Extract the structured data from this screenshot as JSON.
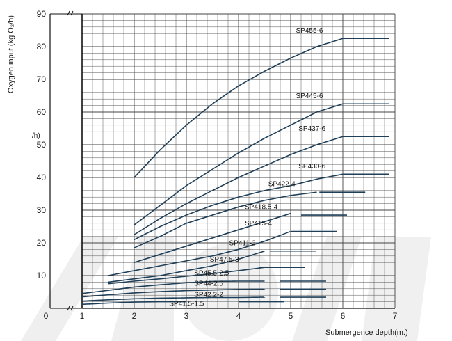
{
  "chart_data": {
    "type": "line",
    "ylabel": "Oxygen input (kg O₂/h)",
    "ylabel_fragment": "/h)",
    "xlabel": "Submergence depth(m.)",
    "x_ticks": [
      "0",
      "1",
      "2",
      "3",
      "4",
      "5",
      "6",
      "7"
    ],
    "y_ticks": [
      "10",
      "20",
      "30",
      "40",
      "50",
      "60",
      "70",
      "80",
      "90"
    ],
    "xlim": [
      1,
      7
    ],
    "ylim": [
      0,
      90
    ],
    "axis_break": true,
    "grid": true,
    "colors": {
      "line": "#1f3f58",
      "grid": "#444444",
      "text": "#1a1a1a",
      "watermark": "#ececec"
    },
    "series": [
      {
        "name": "SP455-6",
        "x": [
          2,
          2.5,
          3,
          3.5,
          4,
          4.5,
          5,
          5.5,
          6
        ],
        "y": [
          40,
          48.5,
          56,
          62.5,
          68,
          72.5,
          76.5,
          80,
          82.5
        ]
      },
      {
        "name": "SP445-6",
        "x": [
          2,
          2.5,
          3,
          3.5,
          4,
          4.5,
          5,
          5.5,
          6
        ],
        "y": [
          25.5,
          31.5,
          37.5,
          42.5,
          47.5,
          52,
          56,
          60,
          62.5
        ]
      },
      {
        "name": "SP437-6",
        "x": [
          2,
          2.5,
          3,
          3.5,
          4,
          4.5,
          5,
          5.5,
          6
        ],
        "y": [
          22.5,
          27.5,
          32,
          36,
          40,
          43.5,
          47,
          50,
          52.5
        ]
      },
      {
        "name": "SP430-6",
        "x": [
          2,
          2.5,
          3,
          3.5,
          4,
          4.5,
          5,
          5.5,
          6
        ],
        "y": [
          21,
          25,
          28.5,
          31.5,
          34,
          36,
          37.5,
          39.5,
          41
        ]
      },
      {
        "name": "SP422-4",
        "x": [
          2,
          2.5,
          3,
          3.5,
          4,
          4.5,
          5,
          5.5
        ],
        "y": [
          18.5,
          22,
          26,
          28.5,
          31,
          33,
          34.5,
          35.5
        ]
      },
      {
        "name": "SP418.5-4",
        "x": [
          2,
          2.5,
          3,
          3.5,
          4,
          4.5,
          5
        ],
        "y": [
          14,
          16.5,
          19,
          21.5,
          24,
          26.5,
          29
        ]
      },
      {
        "name": "SP415-4",
        "x": [
          1.5,
          2,
          2.5,
          3,
          3.5,
          4,
          4.5,
          5
        ],
        "y": [
          10,
          11.5,
          13,
          14.5,
          16,
          18,
          20.5,
          23.5
        ]
      },
      {
        "name": "SP411-3",
        "x": [
          1.5,
          2,
          2.5,
          3,
          3.5,
          4,
          4.5
        ],
        "y": [
          8,
          9,
          10,
          11.5,
          13,
          15,
          17.5
        ]
      },
      {
        "name": "SP47.5-3",
        "x": [
          1.5,
          2,
          2.5,
          3,
          3.5,
          4,
          4.5
        ],
        "y": [
          7.5,
          8.3,
          9,
          9.8,
          10.6,
          11.5,
          12.5
        ]
      },
      {
        "name": "SP45.5-2.5",
        "x": [
          1,
          1.5,
          2,
          2.5,
          3,
          3.5,
          4,
          4.5
        ],
        "y": [
          4.5,
          5.5,
          6.5,
          7.2,
          7.8,
          8.2,
          8.3,
          8.3
        ]
      },
      {
        "name": "SP44-2.5",
        "x": [
          1,
          1.5,
          2,
          2.5,
          3,
          3.5,
          4,
          4.5
        ],
        "y": [
          3.5,
          4.1,
          4.7,
          5.1,
          5.4,
          5.6,
          5.8,
          5.9
        ]
      },
      {
        "name": "SP42.2-2",
        "x": [
          1,
          1.5,
          2,
          2.5,
          3,
          3.5,
          4,
          4.5
        ],
        "y": [
          2.2,
          2.6,
          2.9,
          3.1,
          3.2,
          3.3,
          3.3,
          3.4
        ]
      },
      {
        "name": "SP41.5-1.5",
        "x": [
          1,
          1.5,
          2,
          2.5,
          3
        ],
        "y": [
          1.2,
          1.6,
          1.9,
          2.0,
          2.0
        ]
      }
    ],
    "labels": [
      {
        "name": "SP455-6",
        "x": 6.0,
        "y": 82.5,
        "lx": 5.1,
        "ly": 84.3
      },
      {
        "name": "SP445-6",
        "x": 6.0,
        "y": 62.5,
        "lx": 5.1,
        "ly": 64.3
      },
      {
        "name": "SP437-6",
        "x": 6.0,
        "y": 52.5,
        "lx": 5.15,
        "ly": 54.3
      },
      {
        "name": "SP430-6",
        "x": 6.0,
        "y": 41.0,
        "lx": 5.15,
        "ly": 42.8
      },
      {
        "name": "SP422-4",
        "x": 5.55,
        "y": 35.5,
        "lx": 4.57,
        "ly": 37.3
      },
      {
        "name": "SP418.5-4",
        "x": 5.2,
        "y": 28.5,
        "lx": 4.12,
        "ly": 30.3
      },
      {
        "name": "SP415-4",
        "x": 5.0,
        "y": 23.5,
        "lx": 4.12,
        "ly": 25.3
      },
      {
        "name": "SP411-3",
        "x": 4.6,
        "y": 17.5,
        "lx": 3.82,
        "ly": 19.3
      },
      {
        "name": "SP47.5-3",
        "x": 4.4,
        "y": 12.5,
        "lx": 3.45,
        "ly": 14.3
      },
      {
        "name": "SP45.5-2.5",
        "x": 4.8,
        "y": 8.3,
        "lx": 3.15,
        "ly": 10.1
      },
      {
        "name": "SP44-2.5",
        "x": 4.8,
        "y": 5.9,
        "lx": 3.15,
        "ly": 6.9
      },
      {
        "name": "SP42.2-2",
        "x": 4.8,
        "y": 3.4,
        "lx": 3.15,
        "ly": 3.5
      },
      {
        "name": "SP41.5-1.5",
        "x": 4.0,
        "y": 2.0,
        "lx": 2.67,
        "ly": 0.7
      }
    ]
  }
}
